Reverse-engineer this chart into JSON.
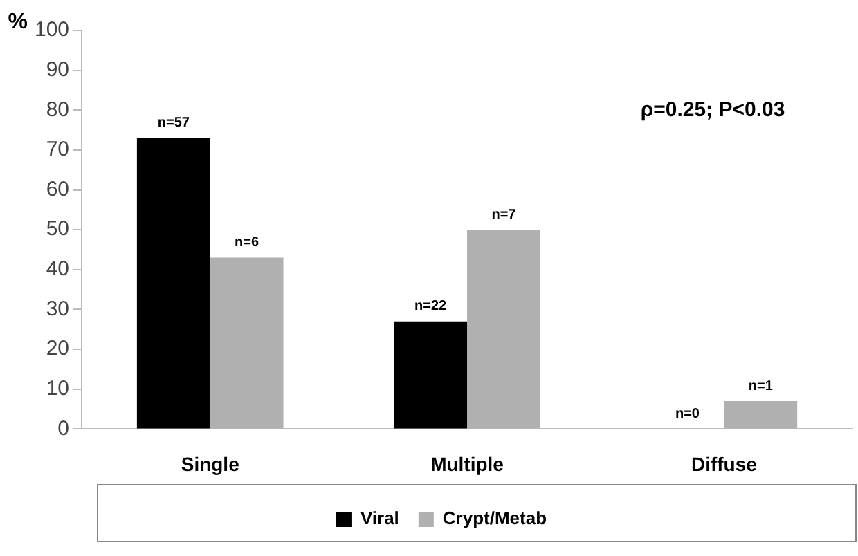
{
  "chart_data": {
    "type": "bar",
    "ylabel": "%",
    "categories": [
      "Single",
      "Multiple",
      "Diffuse"
    ],
    "series": [
      {
        "name": "Viral",
        "color": "#000000",
        "values": [
          73,
          27,
          0
        ]
      },
      {
        "name": "Crypt/Metab",
        "color": "#b0b0b0",
        "values": [
          43,
          50,
          7
        ]
      }
    ],
    "ylim": [
      0,
      100
    ],
    "yticks": [
      0,
      10,
      20,
      30,
      40,
      50,
      60,
      70,
      80,
      90,
      100
    ],
    "grid": false,
    "legend": "bottom",
    "annotations": [
      "ρ=0.25; P<0.03",
      {
        "text": "n=57",
        "x": "Single",
        "y": 73
      },
      {
        "text": "n=6",
        "x": "Single",
        "y": 43
      },
      {
        "text": "n=22",
        "x": "Multiple",
        "y": 27
      },
      {
        "text": "n=7",
        "x": "Multiple",
        "y": 50
      },
      {
        "text": "n=0",
        "x": "Diffuse",
        "y": 0
      },
      {
        "text": "n=1",
        "x": "Diffuse",
        "y": 7
      }
    ]
  }
}
